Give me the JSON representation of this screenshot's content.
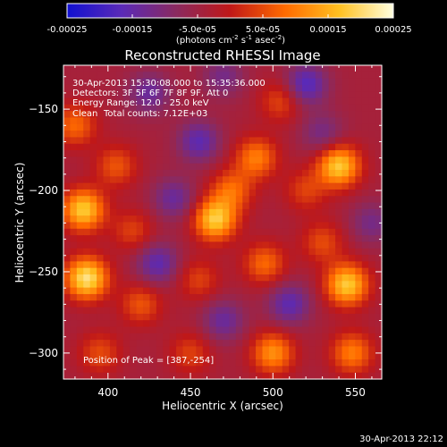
{
  "chart_data": {
    "type": "heatmap",
    "title": "Reconstructed RHESSI Image",
    "xlabel": "Heliocentric X (arcsec)",
    "ylabel": "Heliocentric Y (arcsec)",
    "xlim": [
      373,
      566
    ],
    "ylim": [
      -316,
      -123
    ],
    "x_ticks": [
      400,
      450,
      500,
      550
    ],
    "y_ticks": [
      -150,
      -200,
      -250,
      -300
    ],
    "colorbar": {
      "range": [
        -0.00025,
        0.00025
      ],
      "ticks": [
        "-0.00025",
        "-0.00015",
        "-5.0e-05",
        "5.0e-05",
        "0.00015",
        "0.00025"
      ],
      "units_main": "(photons cm",
      "units_sup1": "-2",
      "units_mid1": " s",
      "units_sup2": "-1",
      "units_mid2": " asec",
      "units_sup3": "-2",
      "units_end": ")",
      "colors": [
        "#1010d0",
        "#5a2ab8",
        "#8a2a60",
        "#c01818",
        "#ff6a00",
        "#ffc020",
        "#ffffe0"
      ]
    },
    "annotations": {
      "time_range": "30-Apr-2013 15:30:08.000 to 15:35:36.000",
      "detectors": "Detectors: 3F 5F 6F 7F 8F 9F, Att 0",
      "energy": "Energy Range: 12.0 - 25.0 keV",
      "method": "Clean",
      "counts": "Total counts: 7.12E+03",
      "peak": "Position of Peak = [387,-254]"
    },
    "peak_position": [
      387,
      -254
    ],
    "hot_spots": [
      {
        "x": 385,
        "y": -212,
        "v": 0.00022
      },
      {
        "x": 387,
        "y": -254,
        "v": 0.00025
      },
      {
        "x": 380,
        "y": -160,
        "v": 0.00012
      },
      {
        "x": 405,
        "y": -185,
        "v": 0.0001
      },
      {
        "x": 415,
        "y": -225,
        "v": 8e-05
      },
      {
        "x": 420,
        "y": -270,
        "v": 0.0001
      },
      {
        "x": 395,
        "y": -300,
        "v": 9e-05
      },
      {
        "x": 450,
        "y": -300,
        "v": 8e-05
      },
      {
        "x": 465,
        "y": -218,
        "v": 0.00022
      },
      {
        "x": 475,
        "y": -200,
        "v": 0.00012
      },
      {
        "x": 455,
        "y": -255,
        "v": 8e-05
      },
      {
        "x": 490,
        "y": -180,
        "v": 0.00014
      },
      {
        "x": 495,
        "y": -245,
        "v": 0.00012
      },
      {
        "x": 500,
        "y": -300,
        "v": 0.00016
      },
      {
        "x": 505,
        "y": -145,
        "v": 9e-05
      },
      {
        "x": 520,
        "y": -200,
        "v": 8e-05
      },
      {
        "x": 540,
        "y": -185,
        "v": 0.00022
      },
      {
        "x": 545,
        "y": -258,
        "v": 0.00022
      },
      {
        "x": 548,
        "y": -300,
        "v": 0.00014
      },
      {
        "x": 530,
        "y": -232,
        "v": 9e-05
      }
    ],
    "cold_spots": [
      {
        "x": 425,
        "y": -140,
        "v": -0.0001
      },
      {
        "x": 455,
        "y": -170,
        "v": -0.00012
      },
      {
        "x": 440,
        "y": -205,
        "v": -0.0001
      },
      {
        "x": 430,
        "y": -245,
        "v": -0.00012
      },
      {
        "x": 470,
        "y": -280,
        "v": -0.0001
      },
      {
        "x": 520,
        "y": -135,
        "v": -0.00014
      },
      {
        "x": 530,
        "y": -165,
        "v": -8e-05
      },
      {
        "x": 510,
        "y": -270,
        "v": -0.00012
      },
      {
        "x": 560,
        "y": -220,
        "v": -8e-05
      },
      {
        "x": 470,
        "y": -130,
        "v": -8e-05
      }
    ]
  },
  "timestamp": "30-Apr-2013 22:12"
}
